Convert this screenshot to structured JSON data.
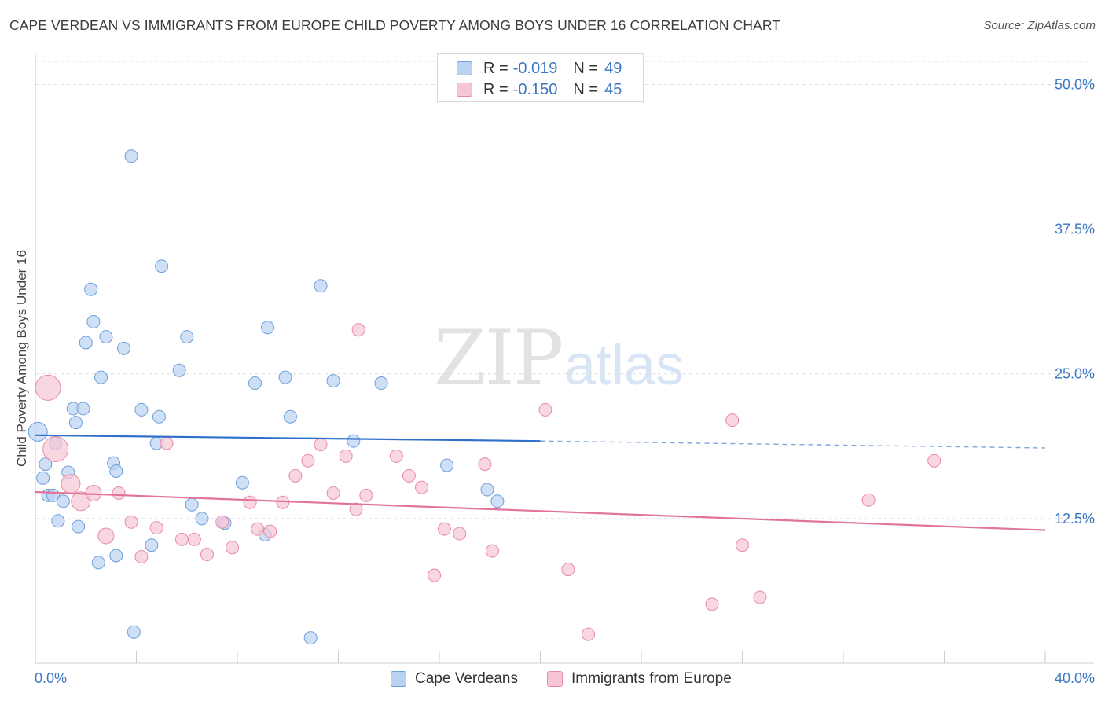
{
  "title": "CAPE VERDEAN VS IMMIGRANTS FROM EUROPE CHILD POVERTY AMONG BOYS UNDER 16 CORRELATION CHART",
  "source": "Source: ZipAtlas.com",
  "watermark": {
    "zip": "ZIP",
    "atlas": "atlas"
  },
  "legend": {
    "rows": [
      {
        "r_label": "R =",
        "r_value": "-0.019",
        "n_label": "N =",
        "n_value": "49",
        "fill": "#b9d2f2",
        "stroke": "#6d9fdc"
      },
      {
        "r_label": "R =",
        "r_value": "-0.150",
        "n_label": "N =",
        "n_value": "45",
        "fill": "#f7c6d4",
        "stroke": "#e88aa6"
      }
    ]
  },
  "bottom_legend": [
    "Cape Verdeans",
    "Immigrants from Europe"
  ],
  "chart_data": {
    "type": "scatter",
    "title": "CAPE VERDEAN VS IMMIGRANTS FROM EUROPE CHILD POVERTY AMONG BOYS UNDER 16 CORRELATION CHART",
    "xlabel": "",
    "ylabel": "Child Poverty Among Boys Under 16",
    "xlim": [
      0,
      40
    ],
    "ylim": [
      0,
      52
    ],
    "x_tick_labels": [
      "0.0%",
      "40.0%"
    ],
    "y_ticks": [
      12.5,
      25.0,
      37.5,
      50.0
    ],
    "y_tick_labels": [
      "12.5%",
      "25.0%",
      "37.5%",
      "50.0%"
    ],
    "grid": true,
    "legend_position": "top-center",
    "series": [
      {
        "name": "Cape Verdeans",
        "color": "#6d9fdc",
        "fill": "#b9d2f2",
        "r": -0.019,
        "n": 49,
        "trend": {
          "x": [
            0,
            20.0,
            40.0
          ],
          "y": [
            19.7,
            19.2,
            18.6
          ],
          "solid_until": 20.0
        },
        "points": [
          {
            "x": 0.1,
            "y": 20.0,
            "s": 12
          },
          {
            "x": 0.3,
            "y": 16.0,
            "s": 8
          },
          {
            "x": 0.4,
            "y": 17.2,
            "s": 8
          },
          {
            "x": 0.5,
            "y": 14.5,
            "s": 8
          },
          {
            "x": 0.7,
            "y": 14.5,
            "s": 8
          },
          {
            "x": 0.8,
            "y": 19.0,
            "s": 8
          },
          {
            "x": 0.9,
            "y": 12.3,
            "s": 8
          },
          {
            "x": 1.1,
            "y": 14.0,
            "s": 8
          },
          {
            "x": 1.3,
            "y": 16.5,
            "s": 8
          },
          {
            "x": 1.5,
            "y": 22.0,
            "s": 8
          },
          {
            "x": 1.6,
            "y": 20.8,
            "s": 8
          },
          {
            "x": 1.7,
            "y": 11.8,
            "s": 8
          },
          {
            "x": 1.9,
            "y": 22.0,
            "s": 8
          },
          {
            "x": 2.0,
            "y": 27.7,
            "s": 8
          },
          {
            "x": 2.2,
            "y": 32.3,
            "s": 8
          },
          {
            "x": 2.3,
            "y": 29.5,
            "s": 8
          },
          {
            "x": 2.5,
            "y": 8.7,
            "s": 8
          },
          {
            "x": 2.6,
            "y": 24.7,
            "s": 8
          },
          {
            "x": 2.8,
            "y": 28.2,
            "s": 8
          },
          {
            "x": 3.1,
            "y": 17.3,
            "s": 8
          },
          {
            "x": 3.2,
            "y": 16.6,
            "s": 8
          },
          {
            "x": 3.5,
            "y": 27.2,
            "s": 8
          },
          {
            "x": 3.8,
            "y": 43.8,
            "s": 8
          },
          {
            "x": 3.9,
            "y": 2.7,
            "s": 8
          },
          {
            "x": 4.2,
            "y": 21.9,
            "s": 8
          },
          {
            "x": 4.6,
            "y": 10.2,
            "s": 8
          },
          {
            "x": 4.8,
            "y": 19.0,
            "s": 8
          },
          {
            "x": 4.9,
            "y": 21.3,
            "s": 8
          },
          {
            "x": 5.0,
            "y": 34.3,
            "s": 8
          },
          {
            "x": 5.7,
            "y": 25.3,
            "s": 8
          },
          {
            "x": 6.0,
            "y": 28.2,
            "s": 8
          },
          {
            "x": 6.2,
            "y": 13.7,
            "s": 8
          },
          {
            "x": 6.6,
            "y": 12.5,
            "s": 8
          },
          {
            "x": 7.5,
            "y": 12.1,
            "s": 8
          },
          {
            "x": 8.2,
            "y": 15.6,
            "s": 8
          },
          {
            "x": 8.7,
            "y": 24.2,
            "s": 8
          },
          {
            "x": 9.1,
            "y": 11.1,
            "s": 8
          },
          {
            "x": 9.2,
            "y": 29.0,
            "s": 8
          },
          {
            "x": 9.9,
            "y": 24.7,
            "s": 8
          },
          {
            "x": 10.1,
            "y": 21.3,
            "s": 8
          },
          {
            "x": 10.9,
            "y": 2.2,
            "s": 8
          },
          {
            "x": 11.3,
            "y": 32.6,
            "s": 8
          },
          {
            "x": 11.8,
            "y": 24.4,
            "s": 8
          },
          {
            "x": 12.6,
            "y": 19.2,
            "s": 8
          },
          {
            "x": 13.7,
            "y": 24.2,
            "s": 8
          },
          {
            "x": 3.2,
            "y": 9.3,
            "s": 8
          },
          {
            "x": 16.3,
            "y": 17.1,
            "s": 8
          },
          {
            "x": 17.9,
            "y": 15.0,
            "s": 8
          },
          {
            "x": 18.3,
            "y": 14.0,
            "s": 8
          }
        ]
      },
      {
        "name": "Immigrants from Europe",
        "color": "#e88aa6",
        "fill": "#f7c6d4",
        "r": -0.15,
        "n": 45,
        "trend": {
          "x": [
            0,
            40.0
          ],
          "y": [
            14.8,
            11.5
          ],
          "solid_until": 40.0
        },
        "points": [
          {
            "x": 0.5,
            "y": 23.8,
            "s": 16
          },
          {
            "x": 0.8,
            "y": 18.5,
            "s": 16
          },
          {
            "x": 1.4,
            "y": 15.5,
            "s": 12
          },
          {
            "x": 1.8,
            "y": 14.0,
            "s": 12
          },
          {
            "x": 2.3,
            "y": 14.7,
            "s": 10
          },
          {
            "x": 2.8,
            "y": 11.0,
            "s": 10
          },
          {
            "x": 3.3,
            "y": 14.7,
            "s": 8
          },
          {
            "x": 3.8,
            "y": 12.2,
            "s": 8
          },
          {
            "x": 4.2,
            "y": 9.2,
            "s": 8
          },
          {
            "x": 4.8,
            "y": 11.7,
            "s": 8
          },
          {
            "x": 5.2,
            "y": 19.0,
            "s": 8
          },
          {
            "x": 5.8,
            "y": 10.7,
            "s": 8
          },
          {
            "x": 6.3,
            "y": 10.7,
            "s": 8
          },
          {
            "x": 6.8,
            "y": 9.4,
            "s": 8
          },
          {
            "x": 7.4,
            "y": 12.2,
            "s": 8
          },
          {
            "x": 7.8,
            "y": 10.0,
            "s": 8
          },
          {
            "x": 8.5,
            "y": 13.9,
            "s": 8
          },
          {
            "x": 8.8,
            "y": 11.6,
            "s": 8
          },
          {
            "x": 9.3,
            "y": 11.4,
            "s": 8
          },
          {
            "x": 9.8,
            "y": 13.9,
            "s": 8
          },
          {
            "x": 10.3,
            "y": 16.2,
            "s": 8
          },
          {
            "x": 10.8,
            "y": 17.5,
            "s": 8
          },
          {
            "x": 11.3,
            "y": 18.9,
            "s": 8
          },
          {
            "x": 11.8,
            "y": 14.7,
            "s": 8
          },
          {
            "x": 12.3,
            "y": 17.9,
            "s": 8
          },
          {
            "x": 12.7,
            "y": 13.3,
            "s": 8
          },
          {
            "x": 12.8,
            "y": 28.8,
            "s": 8
          },
          {
            "x": 13.1,
            "y": 14.5,
            "s": 8
          },
          {
            "x": 14.3,
            "y": 17.9,
            "s": 8
          },
          {
            "x": 14.8,
            "y": 16.2,
            "s": 8
          },
          {
            "x": 15.3,
            "y": 15.2,
            "s": 8
          },
          {
            "x": 15.8,
            "y": 7.6,
            "s": 8
          },
          {
            "x": 16.2,
            "y": 11.6,
            "s": 8
          },
          {
            "x": 16.8,
            "y": 11.2,
            "s": 8
          },
          {
            "x": 17.8,
            "y": 17.2,
            "s": 8
          },
          {
            "x": 18.1,
            "y": 9.7,
            "s": 8
          },
          {
            "x": 20.2,
            "y": 21.9,
            "s": 8
          },
          {
            "x": 21.1,
            "y": 8.1,
            "s": 8
          },
          {
            "x": 21.9,
            "y": 2.5,
            "s": 8
          },
          {
            "x": 26.8,
            "y": 5.1,
            "s": 8
          },
          {
            "x": 27.6,
            "y": 21.0,
            "s": 8
          },
          {
            "x": 28.0,
            "y": 10.2,
            "s": 8
          },
          {
            "x": 28.7,
            "y": 5.7,
            "s": 8
          },
          {
            "x": 33.0,
            "y": 14.1,
            "s": 8
          },
          {
            "x": 35.6,
            "y": 17.5,
            "s": 8
          }
        ]
      }
    ]
  }
}
